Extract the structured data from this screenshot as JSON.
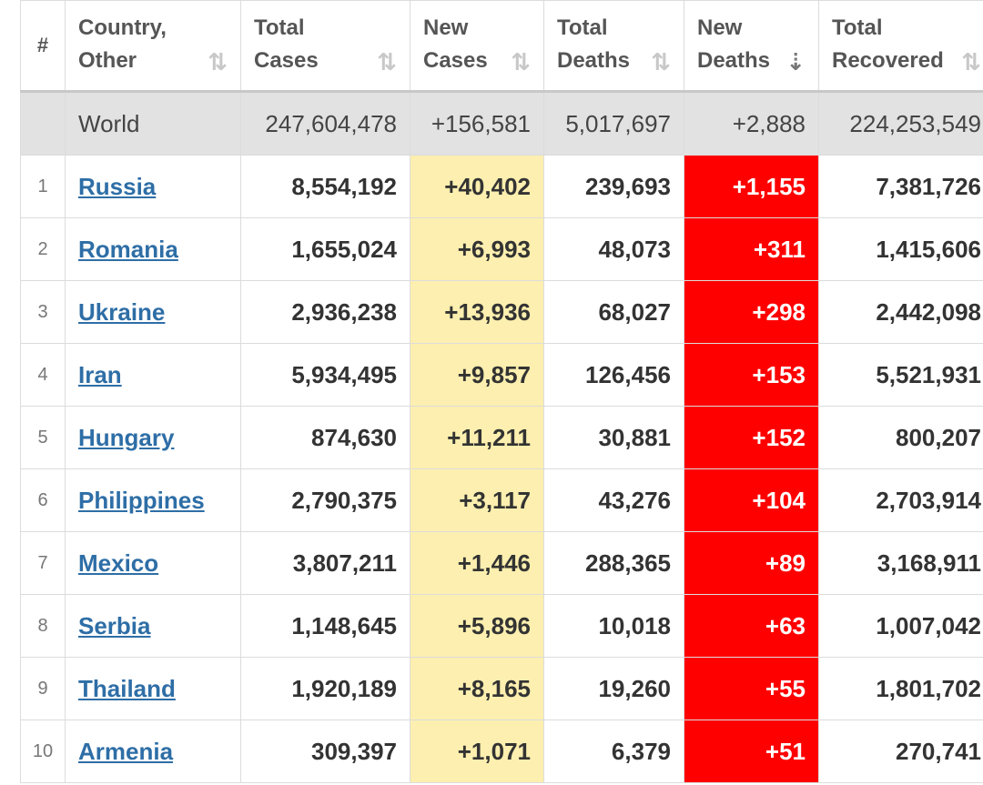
{
  "colors": {
    "new_cases_bg": "#fcefaf",
    "new_deaths_bg": "#ff0000",
    "link": "#2e6ea6",
    "world_bg": "#e2e2e2"
  },
  "header": {
    "rank": "#",
    "country": [
      "Country,",
      "Other"
    ],
    "total_cases": [
      "Total",
      "Cases"
    ],
    "new_cases": [
      "New",
      "Cases"
    ],
    "total_deaths": [
      "Total",
      "Deaths"
    ],
    "new_deaths": [
      "New",
      "Deaths"
    ],
    "total_recovered": [
      "Total",
      "Recovered"
    ]
  },
  "icons": {
    "sort": "sort-icon",
    "sort_active": "sort-descending-icon"
  },
  "world": {
    "name": "World",
    "total_cases": "247,604,478",
    "new_cases": "+156,581",
    "total_deaths": "5,017,697",
    "new_deaths": "+2,888",
    "total_recovered": "224,253,549"
  },
  "rows": [
    {
      "rank": "1",
      "country": "Russia",
      "total_cases": "8,554,192",
      "new_cases": "+40,402",
      "total_deaths": "239,693",
      "new_deaths": "+1,155",
      "total_recovered": "7,381,726"
    },
    {
      "rank": "2",
      "country": "Romania",
      "total_cases": "1,655,024",
      "new_cases": "+6,993",
      "total_deaths": "48,073",
      "new_deaths": "+311",
      "total_recovered": "1,415,606"
    },
    {
      "rank": "3",
      "country": "Ukraine",
      "total_cases": "2,936,238",
      "new_cases": "+13,936",
      "total_deaths": "68,027",
      "new_deaths": "+298",
      "total_recovered": "2,442,098"
    },
    {
      "rank": "4",
      "country": "Iran",
      "total_cases": "5,934,495",
      "new_cases": "+9,857",
      "total_deaths": "126,456",
      "new_deaths": "+153",
      "total_recovered": "5,521,931"
    },
    {
      "rank": "5",
      "country": "Hungary",
      "total_cases": "874,630",
      "new_cases": "+11,211",
      "total_deaths": "30,881",
      "new_deaths": "+152",
      "total_recovered": "800,207"
    },
    {
      "rank": "6",
      "country": "Philippines",
      "total_cases": "2,790,375",
      "new_cases": "+3,117",
      "total_deaths": "43,276",
      "new_deaths": "+104",
      "total_recovered": "2,703,914"
    },
    {
      "rank": "7",
      "country": "Mexico",
      "total_cases": "3,807,211",
      "new_cases": "+1,446",
      "total_deaths": "288,365",
      "new_deaths": "+89",
      "total_recovered": "3,168,911"
    },
    {
      "rank": "8",
      "country": "Serbia",
      "total_cases": "1,148,645",
      "new_cases": "+5,896",
      "total_deaths": "10,018",
      "new_deaths": "+63",
      "total_recovered": "1,007,042"
    },
    {
      "rank": "9",
      "country": "Thailand",
      "total_cases": "1,920,189",
      "new_cases": "+8,165",
      "total_deaths": "19,260",
      "new_deaths": "+55",
      "total_recovered": "1,801,702"
    },
    {
      "rank": "10",
      "country": "Armenia",
      "total_cases": "309,397",
      "new_cases": "+1,071",
      "total_deaths": "6,379",
      "new_deaths": "+51",
      "total_recovered": "270,741"
    }
  ]
}
